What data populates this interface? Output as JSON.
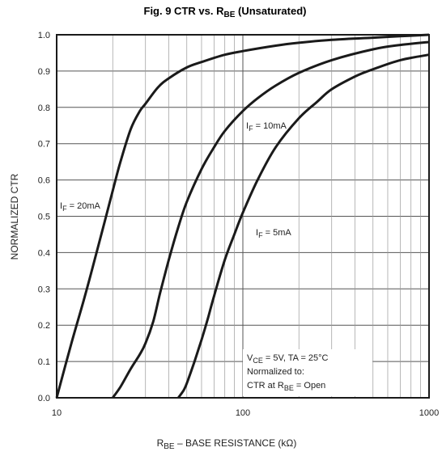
{
  "chart_data": {
    "type": "line",
    "title": {
      "pre": "Fig. 9  CTR vs. R",
      "sub": "BE",
      "post": " (Unsaturated)"
    },
    "xlabel": {
      "pre": "R",
      "sub": "BE",
      "post": " – BASE RESISTANCE (kΩ)"
    },
    "ylabel": "NORMALIZED CTR",
    "xscale": "log",
    "xlim": [
      10,
      1000
    ],
    "ylim": [
      0,
      1.0
    ],
    "x_ticks": [
      10,
      100,
      1000
    ],
    "x_tick_labels": [
      "10",
      "100",
      "1000"
    ],
    "y_ticks": [
      0,
      0.1,
      0.2,
      0.3,
      0.4,
      0.5,
      0.6,
      0.7,
      0.8,
      0.9,
      1.0
    ],
    "y_tick_labels": [
      "0.0",
      "0.1",
      "0.2",
      "0.3",
      "0.4",
      "0.5",
      "0.6",
      "0.7",
      "0.8",
      "0.9",
      "1.0"
    ],
    "grid": true,
    "series": [
      {
        "name": {
          "pre": "I",
          "sub": "F",
          "post": " = 20mA"
        },
        "x": [
          10,
          12,
          14,
          16,
          18,
          20,
          22,
          25,
          28,
          30,
          35,
          40,
          50,
          60,
          80,
          100,
          150,
          200,
          300,
          500,
          700,
          1000
        ],
        "y": [
          0.0,
          0.15,
          0.27,
          0.38,
          0.48,
          0.57,
          0.65,
          0.74,
          0.79,
          0.81,
          0.855,
          0.88,
          0.91,
          0.925,
          0.945,
          0.955,
          0.97,
          0.978,
          0.986,
          0.992,
          0.996,
          1.0
        ]
      },
      {
        "name": {
          "pre": "I",
          "sub": "F",
          "post": " = 10mA"
        },
        "x": [
          20,
          22,
          25,
          28,
          30,
          33,
          36,
          40,
          45,
          50,
          60,
          70,
          80,
          100,
          120,
          150,
          200,
          300,
          500,
          700,
          1000
        ],
        "y": [
          0.0,
          0.03,
          0.08,
          0.12,
          0.15,
          0.21,
          0.29,
          0.38,
          0.47,
          0.54,
          0.63,
          0.69,
          0.735,
          0.79,
          0.825,
          0.86,
          0.895,
          0.93,
          0.96,
          0.972,
          0.98
        ]
      },
      {
        "name": {
          "pre": "I",
          "sub": "F",
          "post": " = 5mA"
        },
        "x": [
          45,
          48,
          50,
          55,
          60,
          65,
          70,
          80,
          90,
          100,
          120,
          150,
          200,
          250,
          300,
          400,
          500,
          700,
          1000
        ],
        "y": [
          0.0,
          0.02,
          0.04,
          0.1,
          0.16,
          0.22,
          0.28,
          0.38,
          0.45,
          0.51,
          0.6,
          0.69,
          0.77,
          0.815,
          0.85,
          0.885,
          0.905,
          0.93,
          0.945
        ]
      }
    ],
    "annotation": {
      "line1": {
        "a": "V",
        "a_sub": "CE",
        "b": " = 5V, TA = 25°C"
      },
      "line2": "Normalized to:",
      "line3": {
        "a": "CTR at R",
        "a_sub": "BE",
        "b": " = Open"
      }
    }
  }
}
